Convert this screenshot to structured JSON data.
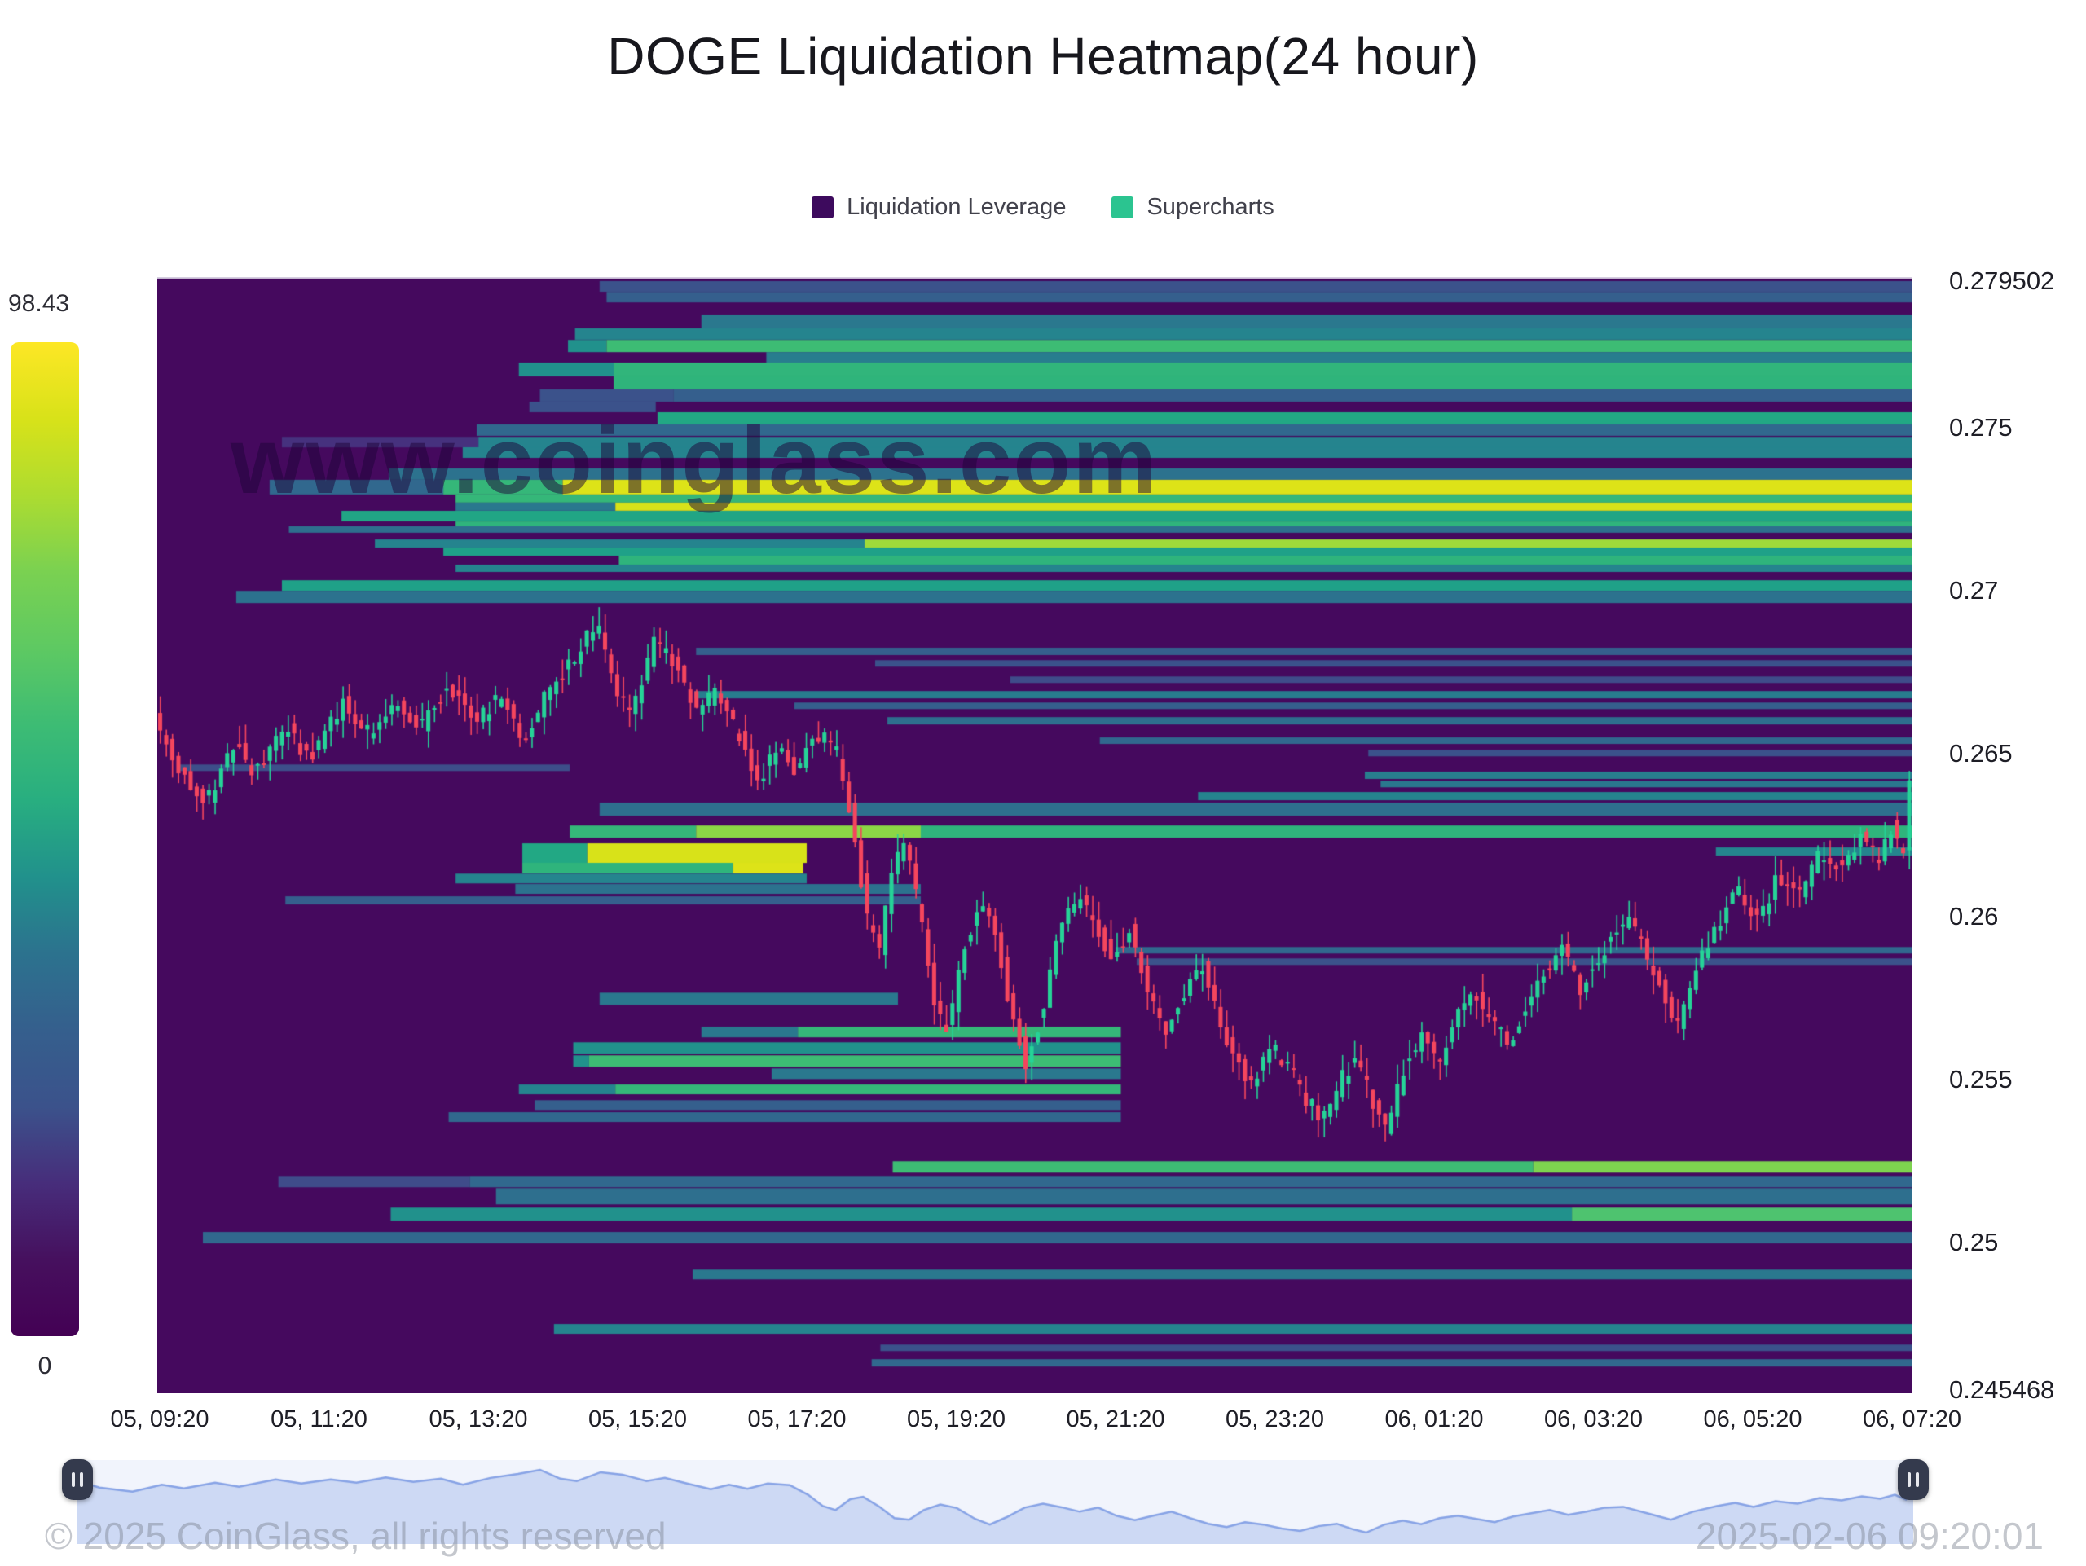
{
  "page": {
    "title": "DOGE Liquidation Heatmap(24 hour)"
  },
  "legend": {
    "items": [
      {
        "label": "Liquidation Leverage",
        "color": "#3d0a5d"
      },
      {
        "label": "Supercharts",
        "color": "#2bc490"
      }
    ]
  },
  "colorbar": {
    "max_label": "98.43",
    "min_label": "0",
    "gradient": [
      "#fde725",
      "#d8e219",
      "#addc30",
      "#7ad151",
      "#5ec962",
      "#3dbc74",
      "#28ae80",
      "#21918c",
      "#2c728e",
      "#355f8d",
      "#3b528b",
      "#472d7b",
      "#46105e",
      "#440154"
    ]
  },
  "watermark": "www.coinglass.com",
  "footer": {
    "copyright": "© 2025 CoinGlass, all rights reserved",
    "timestamp": "2025-02-06 09:20:01"
  },
  "chart_data": {
    "type": "heatmap",
    "title": "DOGE Liquidation Heatmap(24 hour)",
    "legend": [
      "Liquidation Leverage",
      "Supercharts"
    ],
    "colorbar_range": {
      "max": 98.43,
      "min": 0
    },
    "colors": {
      "plot_bg": "#45095e",
      "candle_up": "#26d397",
      "candle_down": "#f5465d",
      "nav_bg": "#f1f4fc",
      "nav_fill": "#cdd9f4",
      "nav_line": "#87a3e6"
    },
    "y_axis": {
      "max": 0.279502,
      "min": 0.245468,
      "ticks": [
        {
          "value": 0.279502,
          "label": "0.279502"
        },
        {
          "value": 0.275,
          "label": "0.275"
        },
        {
          "value": 0.27,
          "label": "0.27"
        },
        {
          "value": 0.265,
          "label": "0.265"
        },
        {
          "value": 0.26,
          "label": "0.26"
        },
        {
          "value": 0.255,
          "label": "0.255"
        },
        {
          "value": 0.25,
          "label": "0.25"
        },
        {
          "value": 0.245468,
          "label": "0.245468"
        }
      ]
    },
    "x_axis": {
      "labels": [
        "05, 09:20",
        "05, 11:20",
        "05, 13:20",
        "05, 15:20",
        "05, 17:20",
        "05, 19:20",
        "05, 21:20",
        "05, 23:20",
        "06, 01:20",
        "06, 03:20",
        "06, 05:20",
        "06, 07:20"
      ]
    },
    "candle_count": 288,
    "price_path": [
      [
        0.0,
        0.2662
      ],
      [
        0.012,
        0.2646
      ],
      [
        0.03,
        0.2636
      ],
      [
        0.046,
        0.2653
      ],
      [
        0.058,
        0.2644
      ],
      [
        0.075,
        0.2658
      ],
      [
        0.088,
        0.2648
      ],
      [
        0.108,
        0.2666
      ],
      [
        0.122,
        0.2656
      ],
      [
        0.138,
        0.2666
      ],
      [
        0.152,
        0.2658
      ],
      [
        0.168,
        0.2671
      ],
      [
        0.183,
        0.266
      ],
      [
        0.198,
        0.2668
      ],
      [
        0.21,
        0.2653
      ],
      [
        0.225,
        0.267
      ],
      [
        0.24,
        0.268
      ],
      [
        0.252,
        0.269
      ],
      [
        0.263,
        0.2668
      ],
      [
        0.272,
        0.2662
      ],
      [
        0.285,
        0.2684
      ],
      [
        0.297,
        0.2678
      ],
      [
        0.31,
        0.2662
      ],
      [
        0.32,
        0.267
      ],
      [
        0.332,
        0.2656
      ],
      [
        0.345,
        0.2642
      ],
      [
        0.355,
        0.2653
      ],
      [
        0.365,
        0.2643
      ],
      [
        0.376,
        0.2656
      ],
      [
        0.388,
        0.2652
      ],
      [
        0.398,
        0.2628
      ],
      [
        0.406,
        0.26
      ],
      [
        0.413,
        0.259
      ],
      [
        0.421,
        0.2617
      ],
      [
        0.428,
        0.2623
      ],
      [
        0.437,
        0.2598
      ],
      [
        0.445,
        0.257
      ],
      [
        0.453,
        0.2566
      ],
      [
        0.461,
        0.259
      ],
      [
        0.47,
        0.2604
      ],
      [
        0.479,
        0.2595
      ],
      [
        0.489,
        0.2568
      ],
      [
        0.497,
        0.2554
      ],
      [
        0.506,
        0.2572
      ],
      [
        0.516,
        0.2596
      ],
      [
        0.526,
        0.2606
      ],
      [
        0.536,
        0.2597
      ],
      [
        0.546,
        0.2586
      ],
      [
        0.556,
        0.2596
      ],
      [
        0.566,
        0.2576
      ],
      [
        0.576,
        0.2565
      ],
      [
        0.586,
        0.2576
      ],
      [
        0.596,
        0.2586
      ],
      [
        0.606,
        0.257
      ],
      [
        0.616,
        0.2556
      ],
      [
        0.626,
        0.2548
      ],
      [
        0.636,
        0.256
      ],
      [
        0.646,
        0.2554
      ],
      [
        0.656,
        0.2544
      ],
      [
        0.666,
        0.2538
      ],
      [
        0.676,
        0.255
      ],
      [
        0.686,
        0.2556
      ],
      [
        0.695,
        0.2542
      ],
      [
        0.702,
        0.2534
      ],
      [
        0.712,
        0.2554
      ],
      [
        0.722,
        0.2564
      ],
      [
        0.732,
        0.2555
      ],
      [
        0.742,
        0.257
      ],
      [
        0.752,
        0.2576
      ],
      [
        0.762,
        0.2568
      ],
      [
        0.772,
        0.256
      ],
      [
        0.782,
        0.2574
      ],
      [
        0.792,
        0.2582
      ],
      [
        0.802,
        0.259
      ],
      [
        0.812,
        0.2578
      ],
      [
        0.822,
        0.2586
      ],
      [
        0.832,
        0.2596
      ],
      [
        0.842,
        0.2598
      ],
      [
        0.855,
        0.2582
      ],
      [
        0.868,
        0.2566
      ],
      [
        0.88,
        0.2586
      ],
      [
        0.893,
        0.26
      ],
      [
        0.903,
        0.2608
      ],
      [
        0.913,
        0.2598
      ],
      [
        0.925,
        0.2612
      ],
      [
        0.937,
        0.2606
      ],
      [
        0.949,
        0.262
      ],
      [
        0.961,
        0.2614
      ],
      [
        0.972,
        0.2624
      ],
      [
        0.982,
        0.2618
      ],
      [
        0.99,
        0.2628
      ],
      [
        0.996,
        0.2616
      ],
      [
        1.0,
        0.2642
      ]
    ],
    "liquidation_bands": [
      {
        "p": 0.27934,
        "h": 13,
        "s": [
          [
            0.252,
            1,
            "#3b528b"
          ]
        ]
      },
      {
        "p": 0.27901,
        "h": 13,
        "s": [
          [
            0.256,
            1,
            "#355f8d"
          ]
        ]
      },
      {
        "p": 0.27826,
        "h": 17,
        "s": [
          [
            0.31,
            1,
            "#2a788e"
          ]
        ]
      },
      {
        "p": 0.27788,
        "h": 14,
        "s": [
          [
            0.238,
            1,
            "#25848e"
          ]
        ]
      },
      {
        "p": 0.27751,
        "h": 15,
        "s": [
          [
            0.234,
            0.256,
            "#21918c"
          ],
          [
            0.256,
            1,
            "#3dbc74"
          ]
        ]
      },
      {
        "p": 0.27716,
        "h": 13,
        "s": [
          [
            0.347,
            1,
            "#287d8e"
          ]
        ]
      },
      {
        "p": 0.27679,
        "h": 17,
        "s": [
          [
            0.206,
            0.26,
            "#21918c"
          ],
          [
            0.26,
            1,
            "#31b57b"
          ]
        ]
      },
      {
        "p": 0.27638,
        "h": 16,
        "s": [
          [
            0.26,
            1,
            "#2fb47b"
          ]
        ]
      },
      {
        "p": 0.27599,
        "h": 15,
        "s": [
          [
            0.218,
            0.294,
            "#3b528b"
          ],
          [
            0.294,
            1,
            "#355f8d"
          ]
        ]
      },
      {
        "p": 0.27564,
        "h": 13,
        "s": [
          [
            0.212,
            0.284,
            "#3b528b"
          ]
        ]
      },
      {
        "p": 0.27529,
        "h": 15,
        "s": [
          [
            0.285,
            1,
            "#22a884"
          ]
        ]
      },
      {
        "p": 0.27493,
        "h": 14,
        "s": [
          [
            0.182,
            1,
            "#31688e"
          ]
        ]
      },
      {
        "p": 0.27456,
        "h": 13,
        "s": [
          [
            0.071,
            0.183,
            "#46317e"
          ],
          [
            0.183,
            1,
            "#25848e"
          ]
        ]
      },
      {
        "p": 0.27424,
        "h": 13,
        "s": [
          [
            0.174,
            1,
            "#25848e"
          ]
        ]
      },
      {
        "p": 0.27358,
        "h": 14,
        "s": [
          [
            0.132,
            1,
            "#2c728e"
          ]
        ]
      },
      {
        "p": 0.27318,
        "h": 18,
        "s": [
          [
            0.064,
            0.163,
            "#31688e"
          ],
          [
            0.163,
            0.231,
            "#35b779"
          ],
          [
            0.231,
            1,
            "#dde318"
          ]
        ]
      },
      {
        "p": 0.27283,
        "h": 10,
        "s": [
          [
            0.17,
            1,
            "#35b779"
          ]
        ]
      },
      {
        "p": 0.27258,
        "h": 10,
        "s": [
          [
            0.17,
            0.261,
            "#2a788e"
          ],
          [
            0.261,
            1,
            "#d8e219"
          ]
        ]
      },
      {
        "p": 0.27229,
        "h": 13,
        "s": [
          [
            0.105,
            1,
            "#21a585"
          ]
        ]
      },
      {
        "p": 0.27205,
        "h": 6,
        "s": [
          [
            0.17,
            1,
            "#2fb47c"
          ]
        ]
      },
      {
        "p": 0.27188,
        "h": 8,
        "s": [
          [
            0.075,
            1,
            "#2e6f8e"
          ]
        ]
      },
      {
        "p": 0.27145,
        "h": 10,
        "s": [
          [
            0.124,
            0.403,
            "#25848e"
          ],
          [
            0.403,
            1,
            "#9fda3a"
          ]
        ]
      },
      {
        "p": 0.2712,
        "h": 10,
        "s": [
          [
            0.163,
            1,
            "#1fa188"
          ]
        ]
      },
      {
        "p": 0.27094,
        "h": 11,
        "s": [
          [
            0.263,
            1,
            "#2fb47c"
          ]
        ]
      },
      {
        "p": 0.27069,
        "h": 9,
        "s": [
          [
            0.17,
            1,
            "#25848e"
          ]
        ]
      },
      {
        "p": 0.27016,
        "h": 13,
        "s": [
          [
            0.071,
            1,
            "#1fa188"
          ]
        ]
      },
      {
        "p": 0.26981,
        "h": 15,
        "s": [
          [
            0.045,
            1,
            "#2c728e"
          ]
        ]
      },
      {
        "p": 0.26814,
        "h": 9,
        "s": [
          [
            0.307,
            1,
            "#355f8d"
          ]
        ]
      },
      {
        "p": 0.26777,
        "h": 8,
        "s": [
          [
            0.409,
            1,
            "#3b528b"
          ]
        ]
      },
      {
        "p": 0.26727,
        "h": 8,
        "s": [
          [
            0.486,
            1,
            "#3f4c8a"
          ]
        ]
      },
      {
        "p": 0.26681,
        "h": 9,
        "s": [
          [
            0.306,
            1,
            "#287d8e"
          ]
        ]
      },
      {
        "p": 0.26647,
        "h": 8,
        "s": [
          [
            0.363,
            1,
            "#355f8d"
          ]
        ]
      },
      {
        "p": 0.26601,
        "h": 9,
        "s": [
          [
            0.416,
            1,
            "#2e6f8e"
          ]
        ]
      },
      {
        "p": 0.2654,
        "h": 8,
        "s": [
          [
            0.537,
            1,
            "#31688e"
          ]
        ]
      },
      {
        "p": 0.26502,
        "h": 8,
        "s": [
          [
            0.69,
            1,
            "#3b528b"
          ]
        ]
      },
      {
        "p": 0.26457,
        "h": 8,
        "s": [
          [
            0.012,
            0.235,
            "#3d4e8a"
          ]
        ]
      },
      {
        "p": 0.26434,
        "h": 9,
        "s": [
          [
            0.688,
            1,
            "#287d8e"
          ]
        ]
      },
      {
        "p": 0.26407,
        "h": 8,
        "s": [
          [
            0.697,
            1,
            "#2a788e"
          ]
        ]
      },
      {
        "p": 0.2637,
        "h": 10,
        "s": [
          [
            0.593,
            1,
            "#25848e"
          ]
        ]
      },
      {
        "p": 0.2633,
        "h": 16,
        "s": [
          [
            0.252,
            1,
            "#2e6f8e"
          ]
        ]
      },
      {
        "p": 0.26261,
        "h": 15,
        "s": [
          [
            0.235,
            0.307,
            "#35b779"
          ],
          [
            0.307,
            0.435,
            "#8bd646"
          ],
          [
            0.435,
            1,
            "#2fb47c"
          ]
        ]
      },
      {
        "p": 0.262,
        "h": 10,
        "s": [
          [
            0.888,
            1,
            "#25848e"
          ]
        ]
      },
      {
        "p": 0.26195,
        "h": 24,
        "s": [
          [
            0.208,
            0.245,
            "#22a884"
          ],
          [
            0.245,
            0.37,
            "#d8e219"
          ]
        ]
      },
      {
        "p": 0.26149,
        "h": 13,
        "s": [
          [
            0.208,
            0.328,
            "#2fb47c"
          ],
          [
            0.328,
            0.368,
            "#dde318"
          ]
        ]
      },
      {
        "p": 0.26117,
        "h": 12,
        "s": [
          [
            0.17,
            0.37,
            "#25848e"
          ]
        ]
      },
      {
        "p": 0.26085,
        "h": 12,
        "s": [
          [
            0.204,
            0.435,
            "#2c728e"
          ]
        ]
      },
      {
        "p": 0.2605,
        "h": 10,
        "s": [
          [
            0.073,
            0.435,
            "#355f8d"
          ]
        ]
      },
      {
        "p": 0.25897,
        "h": 8,
        "s": [
          [
            0.546,
            1,
            "#31688e"
          ]
        ]
      },
      {
        "p": 0.25862,
        "h": 8,
        "s": [
          [
            0.558,
            1,
            "#3b528b"
          ]
        ]
      },
      {
        "p": 0.25748,
        "h": 15,
        "s": [
          [
            0.252,
            0.422,
            "#2a788e"
          ]
        ]
      },
      {
        "p": 0.25646,
        "h": 13,
        "s": [
          [
            0.31,
            0.365,
            "#2a788e"
          ],
          [
            0.365,
            0.549,
            "#35b779"
          ]
        ]
      },
      {
        "p": 0.25597,
        "h": 14,
        "s": [
          [
            0.237,
            0.549,
            "#21918c"
          ]
        ]
      },
      {
        "p": 0.25557,
        "h": 14,
        "s": [
          [
            0.237,
            0.246,
            "#21918c"
          ],
          [
            0.246,
            0.549,
            "#3dbc74"
          ]
        ]
      },
      {
        "p": 0.25518,
        "h": 13,
        "s": [
          [
            0.35,
            0.549,
            "#2a788e"
          ]
        ]
      },
      {
        "p": 0.2547,
        "h": 12,
        "s": [
          [
            0.206,
            0.261,
            "#25848e"
          ],
          [
            0.261,
            0.549,
            "#35b779"
          ]
        ]
      },
      {
        "p": 0.25422,
        "h": 12,
        "s": [
          [
            0.215,
            0.549,
            "#355f8d"
          ]
        ]
      },
      {
        "p": 0.25385,
        "h": 12,
        "s": [
          [
            0.166,
            0.549,
            "#31688e"
          ]
        ]
      },
      {
        "p": 0.25232,
        "h": 14,
        "s": [
          [
            0.419,
            0.784,
            "#3dbc74"
          ],
          [
            0.784,
            1,
            "#7ed34f"
          ]
        ]
      },
      {
        "p": 0.25187,
        "h": 14,
        "s": [
          [
            0.069,
            0.178,
            "#3f4c8a"
          ],
          [
            0.178,
            1,
            "#31688e"
          ]
        ]
      },
      {
        "p": 0.25142,
        "h": 20,
        "s": [
          [
            0.193,
            1,
            "#2e6f8e"
          ]
        ]
      },
      {
        "p": 0.25087,
        "h": 16,
        "s": [
          [
            0.133,
            0.806,
            "#21918c"
          ],
          [
            0.806,
            1,
            "#4ec36f"
          ]
        ]
      },
      {
        "p": 0.25015,
        "h": 14,
        "s": [
          [
            0.026,
            1,
            "#31688e"
          ]
        ]
      },
      {
        "p": 0.24902,
        "h": 12,
        "s": [
          [
            0.305,
            1,
            "#2a788e"
          ]
        ]
      },
      {
        "p": 0.24735,
        "h": 12,
        "s": [
          [
            0.226,
            1,
            "#25848e"
          ]
        ]
      },
      {
        "p": 0.24677,
        "h": 8,
        "s": [
          [
            0.412,
            1,
            "#3b528b"
          ]
        ]
      },
      {
        "p": 0.24631,
        "h": 9,
        "s": [
          [
            0.407,
            1,
            "#31688e"
          ]
        ]
      }
    ]
  }
}
